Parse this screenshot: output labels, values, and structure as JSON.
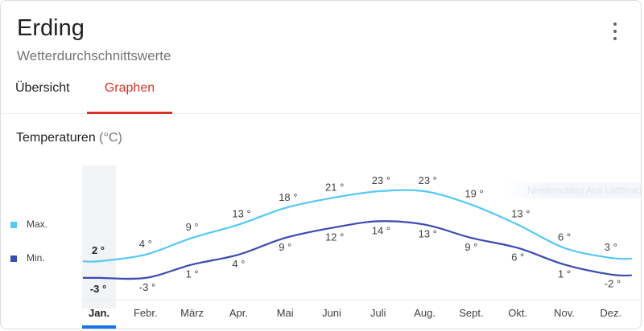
{
  "header": {
    "title": "Erding",
    "subtitle": "Wetterdurchschnittswerte",
    "menu_icon": "more-vert-icon"
  },
  "tabs": [
    {
      "label": "Übersicht",
      "active": false
    },
    {
      "label": "Graphen",
      "active": true
    }
  ],
  "section": {
    "title": "Temperaturen",
    "unit": "(°C)"
  },
  "overlay_text": "Niederschlag Aus Luftfeuchte",
  "legend": [
    {
      "label": "Max.",
      "color": "#55c8f3"
    },
    {
      "label": "Min.",
      "color": "#3a4bb3"
    }
  ],
  "colors": {
    "accent": "#d93025",
    "max_line": "#55c8f3",
    "min_line": "#3a4bb3",
    "selected_bar": "#1a73e8"
  },
  "chart_data": {
    "type": "line",
    "title": "Temperaturen (°C)",
    "categories": [
      "Jan.",
      "Febr.",
      "März",
      "Apr.",
      "Mai",
      "Juni",
      "Juli",
      "Aug.",
      "Sept.",
      "Okt.",
      "Nov.",
      "Dez."
    ],
    "selected_index": 0,
    "series": [
      {
        "name": "Max.",
        "values": [
          2,
          4,
          9,
          13,
          18,
          21,
          23,
          23,
          19,
          13,
          6,
          3
        ],
        "labels": [
          "2 °",
          "4 °",
          "9 °",
          "13 °",
          "18 °",
          "21 °",
          "23 °",
          "23 °",
          "19 °",
          "13 °",
          "6 °",
          "3 °"
        ]
      },
      {
        "name": "Min.",
        "values": [
          -3,
          -3,
          1,
          4,
          9,
          12,
          14,
          13,
          9,
          6,
          1,
          -2
        ],
        "labels": [
          "-3 °",
          "-3 °",
          "1 °",
          "4 °",
          "9 °",
          "12 °",
          "14 °",
          "13 °",
          "9 °",
          "6 °",
          "1 °",
          "-2 °"
        ]
      }
    ],
    "xlabel": "",
    "ylabel": "",
    "ylim": [
      -4,
      24
    ],
    "legend": "left"
  }
}
